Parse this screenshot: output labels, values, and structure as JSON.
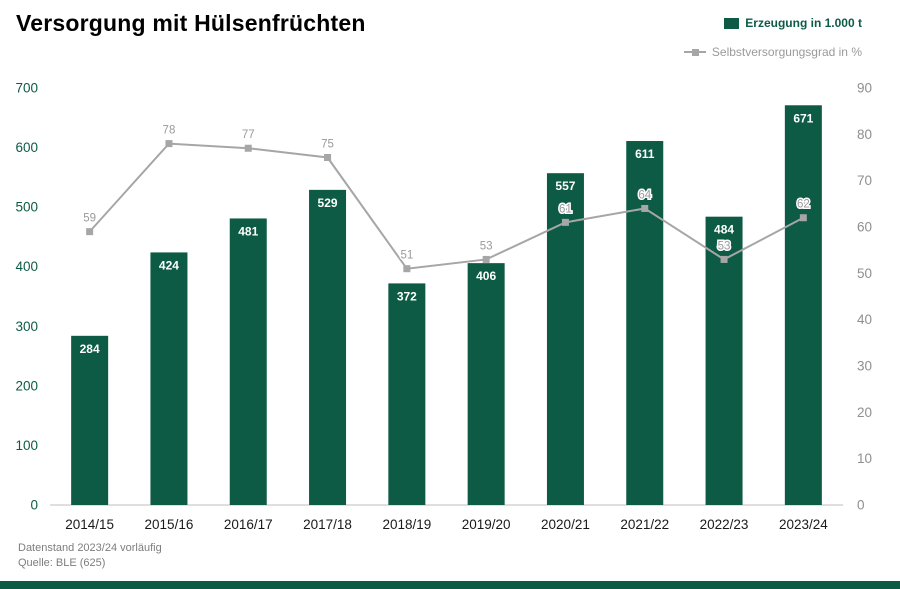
{
  "title": "Versorgung mit Hülsenfrüchten",
  "colors": {
    "bar": "#0d5b45",
    "line": "#a6a6a6",
    "left_axis_text": "#0d5b45",
    "right_axis_text": "#8f8f8f",
    "x_axis_text": "#1a1a1a",
    "bar_label": "#ffffff",
    "point_label": "#9a9a9a",
    "baseline": "#bfbfbf",
    "footer_text": "#7d7d7d",
    "bottom_strip": "#0d5b45"
  },
  "legend": [
    {
      "label": "Erzeugung in 1.000 t",
      "marker": "bar-swatch",
      "color": "#0d5b45"
    },
    {
      "label": "Selbstversorgungsgrad in %",
      "marker": "line-square-swatch",
      "color": "#a6a6a6"
    }
  ],
  "footer": {
    "line1": "Datenstand 2023/24 vorläufig",
    "line2": "Quelle: BLE (625)"
  },
  "chart_data": {
    "type": "bar",
    "subtype": "bar+line combo, dual axis",
    "title": "Versorgung mit Hülsenfrüchten",
    "categories": [
      "2014/15",
      "2015/16",
      "2016/17",
      "2017/18",
      "2018/19",
      "2019/20",
      "2020/21",
      "2021/22",
      "2022/23",
      "2023/24"
    ],
    "series": [
      {
        "name": "Erzeugung in 1.000 t",
        "type": "bar",
        "axis": "left",
        "color": "#0d5b45",
        "values": [
          284,
          424,
          481,
          529,
          372,
          406,
          557,
          611,
          484,
          671
        ]
      },
      {
        "name": "Selbstversorgungsgrad in %",
        "type": "line",
        "axis": "right",
        "color": "#a6a6a6",
        "values": [
          59,
          78,
          77,
          75,
          51,
          53,
          61,
          64,
          53,
          62
        ]
      }
    ],
    "left_axis": {
      "min": 0,
      "max": 700,
      "ticks": [
        0,
        100,
        200,
        300,
        400,
        500,
        600,
        700
      ]
    },
    "right_axis": {
      "min": 0,
      "max": 90,
      "ticks": [
        0,
        10,
        20,
        30,
        40,
        50,
        60,
        70,
        80,
        90
      ]
    },
    "grid": false,
    "legend_position": "top-right",
    "data_labels": true
  }
}
